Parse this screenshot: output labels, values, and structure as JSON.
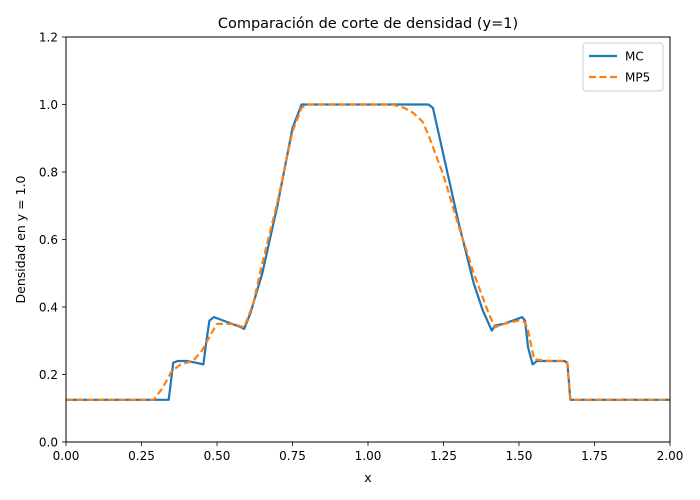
{
  "chart_data": {
    "type": "line",
    "title": "Comparación de corte de densidad (y=1)",
    "xlabel": "x",
    "ylabel": "Densidad en y = 1.0",
    "xlim": [
      0.0,
      2.0
    ],
    "ylim": [
      0.0,
      1.2
    ],
    "xticks": [
      "0.00",
      "0.25",
      "0.50",
      "0.75",
      "1.00",
      "1.25",
      "1.50",
      "1.75",
      "2.00"
    ],
    "yticks": [
      "0.0",
      "0.2",
      "0.4",
      "0.6",
      "0.8",
      "1.0",
      "1.2"
    ],
    "grid": false,
    "legend_position": "top-right",
    "series": [
      {
        "name": "MC",
        "color": "#1f77b4",
        "style": "solid",
        "x": [
          0.0,
          0.34,
          0.345,
          0.355,
          0.37,
          0.4,
          0.43,
          0.455,
          0.465,
          0.475,
          0.49,
          0.52,
          0.55,
          0.58,
          0.59,
          0.61,
          0.65,
          0.7,
          0.75,
          0.78,
          0.8,
          0.85,
          0.9,
          1.0,
          1.1,
          1.15,
          1.2,
          1.215,
          1.25,
          1.3,
          1.35,
          1.38,
          1.41,
          1.42,
          1.45,
          1.48,
          1.51,
          1.52,
          1.53,
          1.545,
          1.56,
          1.6,
          1.65,
          1.66,
          1.67,
          1.75,
          2.0
        ],
        "values": [
          0.125,
          0.125,
          0.16,
          0.235,
          0.24,
          0.24,
          0.235,
          0.23,
          0.3,
          0.36,
          0.37,
          0.36,
          0.35,
          0.34,
          0.335,
          0.38,
          0.5,
          0.7,
          0.93,
          1.0,
          1.0,
          1.0,
          1.0,
          1.0,
          1.0,
          1.0,
          1.0,
          0.99,
          0.85,
          0.65,
          0.47,
          0.39,
          0.33,
          0.345,
          0.35,
          0.36,
          0.37,
          0.36,
          0.28,
          0.23,
          0.24,
          0.24,
          0.24,
          0.235,
          0.125,
          0.125,
          0.125
        ]
      },
      {
        "name": "MP5",
        "color": "#ff7f0e",
        "style": "dashed",
        "x": [
          0.0,
          0.29,
          0.32,
          0.35,
          0.38,
          0.42,
          0.45,
          0.48,
          0.5,
          0.55,
          0.59,
          0.62,
          0.65,
          0.7,
          0.75,
          0.78,
          0.8,
          0.85,
          0.9,
          1.0,
          1.08,
          1.12,
          1.15,
          1.18,
          1.2,
          1.25,
          1.3,
          1.35,
          1.4,
          1.42,
          1.45,
          1.5,
          1.52,
          1.53,
          1.55,
          1.6,
          1.65,
          1.66,
          1.67,
          1.75,
          2.0
        ],
        "values": [
          0.125,
          0.125,
          0.16,
          0.21,
          0.23,
          0.24,
          0.27,
          0.32,
          0.35,
          0.35,
          0.34,
          0.41,
          0.53,
          0.71,
          0.92,
          0.99,
          1.0,
          1.0,
          1.0,
          1.0,
          1.0,
          0.99,
          0.975,
          0.95,
          0.91,
          0.79,
          0.64,
          0.5,
          0.38,
          0.34,
          0.35,
          0.36,
          0.355,
          0.33,
          0.245,
          0.24,
          0.24,
          0.235,
          0.125,
          0.125,
          0.125
        ]
      }
    ]
  }
}
